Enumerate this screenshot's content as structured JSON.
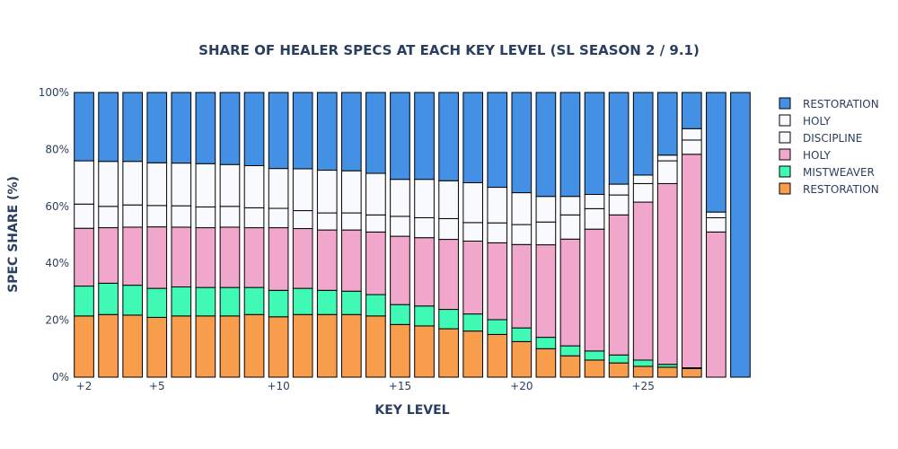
{
  "chart_data": {
    "type": "bar",
    "stacked": true,
    "title": "SHARE OF HEALER SPECS AT EACH KEY LEVEL (SL SEASON 2 / 9.1)",
    "xlabel": "KEY LEVEL",
    "ylabel": "SPEC SHARE (%)",
    "ylim": [
      0,
      100
    ],
    "y_ticks": [
      "0%",
      "20%",
      "40%",
      "60%",
      "80%",
      "100%"
    ],
    "y_tick_values": [
      0,
      20,
      40,
      60,
      80,
      100
    ],
    "x_ticks": [
      {
        "label": "+2",
        "key": 2
      },
      {
        "label": "+5",
        "key": 5
      },
      {
        "label": "+10",
        "key": 10
      },
      {
        "label": "+15",
        "key": 15
      },
      {
        "label": "+20",
        "key": 20
      },
      {
        "label": "+25",
        "key": 25
      }
    ],
    "x": [
      2,
      3,
      4,
      5,
      6,
      7,
      8,
      9,
      10,
      11,
      12,
      13,
      14,
      15,
      16,
      17,
      18,
      19,
      20,
      21,
      22,
      23,
      24,
      25,
      26,
      27,
      28,
      29
    ],
    "legend_position": "right",
    "series": [
      {
        "name": "RESTORATION",
        "class": "Shaman",
        "color": "#F79D4B",
        "values": [
          21.5,
          22,
          21.8,
          21,
          21.5,
          21.5,
          21.5,
          22,
          21.2,
          22,
          22,
          22,
          21.5,
          18.5,
          18,
          17,
          16.2,
          15,
          12.5,
          10,
          7.5,
          6,
          5,
          3.8,
          3.5,
          3,
          0,
          0
        ]
      },
      {
        "name": "MISTWEAVER",
        "class": "Monk",
        "color": "#3FF9B4",
        "values": [
          10.5,
          11,
          10.5,
          10.2,
          10.2,
          10,
          10,
          9.5,
          9.3,
          9.2,
          8.5,
          8.2,
          7.5,
          7,
          7,
          6.8,
          6,
          5.2,
          4.8,
          4,
          3.5,
          3.2,
          2.8,
          2.2,
          1,
          0.3,
          0,
          0
        ]
      },
      {
        "name": "HOLY",
        "class": "Paladin",
        "color": "#F0A7CB",
        "values": [
          20.3,
          19.5,
          20.4,
          21.6,
          21,
          21,
          21.2,
          21,
          22,
          21,
          21.2,
          21.5,
          22,
          24,
          24,
          24.6,
          25.6,
          27,
          29.3,
          32.5,
          37.5,
          42.8,
          49.2,
          55.5,
          63.5,
          75,
          51,
          0
        ]
      },
      {
        "name": "DISCIPLINE",
        "class": "Priest",
        "color": "#F8FAFD",
        "values": [
          8.5,
          7.5,
          7.8,
          7.5,
          7.5,
          7.3,
          7.3,
          7,
          6.8,
          6.3,
          6,
          6,
          6,
          7,
          7,
          7.3,
          6.5,
          7,
          7,
          8,
          8.5,
          7.2,
          7,
          6.5,
          8,
          5,
          5,
          0
        ]
      },
      {
        "name": "HOLY",
        "class": "Priest",
        "color": "#F8FAFD",
        "values": [
          15.2,
          15.8,
          15.3,
          15,
          15,
          15.2,
          14.7,
          14.8,
          14,
          14.7,
          15,
          14.8,
          14.6,
          13,
          13.5,
          13.3,
          14,
          12.5,
          11.2,
          9,
          6.5,
          5,
          3.8,
          3,
          2,
          4,
          2,
          0
        ]
      },
      {
        "name": "RESTORATION",
        "class": "Druid",
        "color": "#4490E4",
        "values": [
          24,
          24.2,
          24.2,
          24.7,
          24.8,
          25,
          25.3,
          25.7,
          26.7,
          26.8,
          27.3,
          27.5,
          28.4,
          30.5,
          30.5,
          31,
          31.7,
          33.3,
          35.2,
          36.5,
          36.5,
          35.8,
          32.2,
          29,
          22,
          12.7,
          42,
          100
        ]
      }
    ],
    "legend_order": [
      5,
      4,
      3,
      2,
      1,
      0
    ]
  }
}
